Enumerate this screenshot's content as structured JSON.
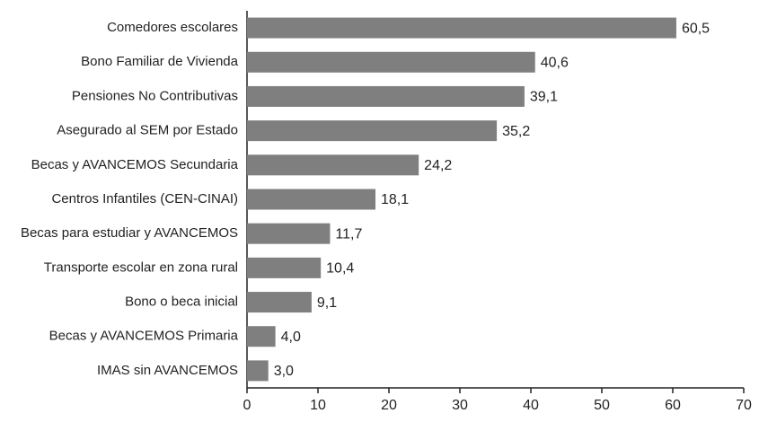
{
  "chart_data": {
    "type": "barh",
    "categories": [
      "Comedores escolares",
      "Bono Familiar de Vivienda",
      "Pensiones No Contributivas",
      "Asegurado al SEM por Estado",
      "Becas y AVANCEMOS Secundaria",
      "Centros Infantiles (CEN-CINAI)",
      "Becas para estudiar y AVANCEMOS",
      "Transporte escolar en zona rural",
      "Bono o beca inicial",
      "Becas y AVANCEMOS Primaria",
      "IMAS sin AVANCEMOS"
    ],
    "values": [
      60.5,
      40.6,
      39.1,
      35.2,
      24.2,
      18.1,
      11.7,
      10.4,
      9.1,
      4.0,
      3.0
    ],
    "value_labels": [
      "60,5",
      "40,6",
      "39,1",
      "35,2",
      "24,2",
      "18,1",
      "11,7",
      "10,4",
      "9,1",
      "4,0",
      "3,0"
    ],
    "color": "#7f7f7f",
    "xlim": [
      0,
      70
    ],
    "xticks": [
      0,
      10,
      20,
      30,
      40,
      50,
      60,
      70
    ],
    "grid": false
  }
}
